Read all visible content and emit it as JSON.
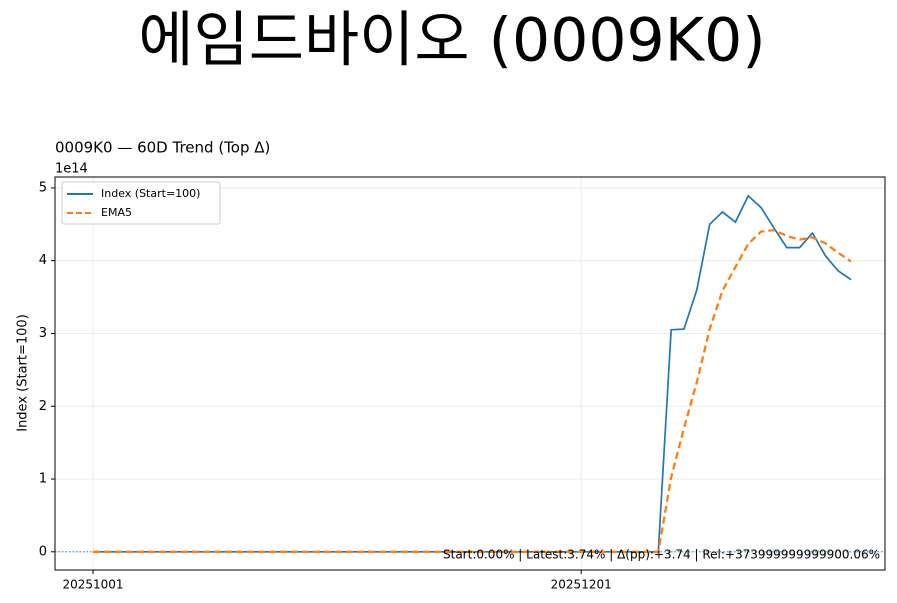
{
  "title": "에임드바이오 (0009K0)",
  "chart_data": {
    "type": "line",
    "title": "0009K0 — 60D Trend (Top Δ)",
    "y_offset_label": "1e14",
    "ylabel": "Index (Start=100)",
    "categories": [
      "20251001",
      null,
      null,
      null,
      null,
      null,
      null,
      null,
      null,
      null,
      null,
      null,
      null,
      null,
      null,
      null,
      null,
      null,
      null,
      null,
      null,
      null,
      null,
      null,
      null,
      null,
      null,
      null,
      null,
      null,
      null,
      null,
      null,
      null,
      null,
      null,
      null,
      null,
      "20251201",
      null,
      null,
      null,
      null,
      null,
      null,
      null,
      null,
      null,
      null,
      null,
      null,
      null,
      null,
      null,
      null,
      null,
      null,
      null,
      null,
      null
    ],
    "series": [
      {
        "name": "Index (Start=100)",
        "color": "#1f77b4",
        "dash": "solid",
        "values": [
          0,
          0,
          0,
          0,
          0,
          0,
          0,
          0,
          0,
          0,
          0,
          0,
          0,
          0,
          0,
          0,
          0,
          0,
          0,
          0,
          0,
          0,
          0,
          0,
          0,
          0,
          0,
          0,
          0,
          0,
          0,
          0,
          0,
          0,
          0,
          0,
          0,
          0,
          0,
          0,
          0,
          0,
          0,
          0,
          0,
          3.05,
          3.06,
          3.6,
          4.5,
          4.67,
          4.53,
          4.89,
          4.73,
          4.45,
          4.18,
          4.18,
          4.38,
          4.07,
          3.86,
          3.74
        ]
      },
      {
        "name": "EMA5",
        "color": "#ff7f0e",
        "dash": "dashed",
        "values": [
          0,
          0,
          0,
          0,
          0,
          0,
          0,
          0,
          0,
          0,
          0,
          0,
          0,
          0,
          0,
          0,
          0,
          0,
          0,
          0,
          0,
          0,
          0,
          0,
          0,
          0,
          0,
          0,
          0,
          0,
          0,
          0,
          0,
          0,
          0,
          0,
          0,
          0,
          0,
          0,
          0,
          0,
          0,
          0,
          0,
          1.02,
          1.7,
          2.33,
          3.06,
          3.59,
          3.91,
          4.23,
          4.4,
          4.42,
          4.34,
          4.29,
          4.32,
          4.24,
          4.11,
          3.99
        ]
      }
    ],
    "ylim": [
      -0.25,
      5.15
    ],
    "yticks": [
      0,
      1,
      2,
      3,
      4,
      5
    ],
    "grid": true,
    "hline": 0,
    "legend": "upper left",
    "annotation": "Start:0.00% | Latest:3.74% | Δ(pp):+3.74 | Rel:+373999999999900.06%"
  }
}
